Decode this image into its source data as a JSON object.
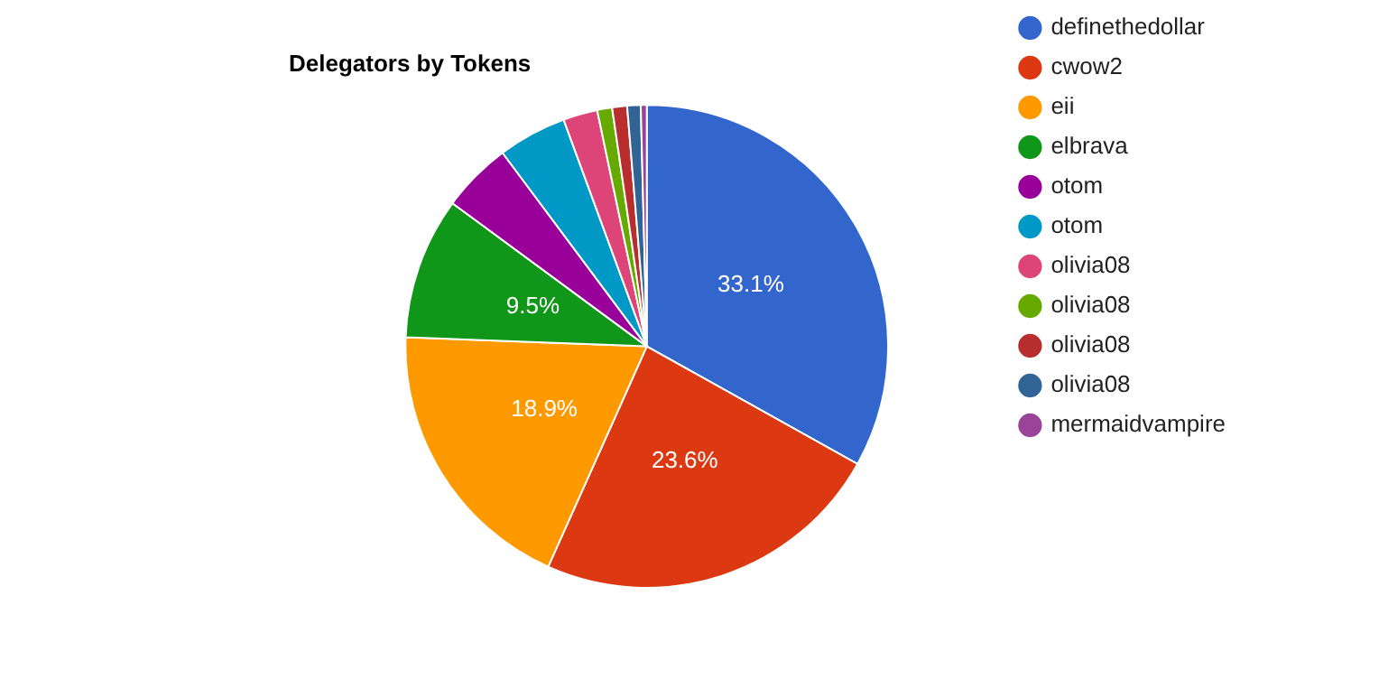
{
  "chart_data": {
    "type": "pie",
    "title": "Delegators by Tokens",
    "categories": [
      "definethedollar",
      "cwow2",
      "eii",
      "elbrava",
      "otom",
      "otom",
      "olivia08",
      "olivia08",
      "olivia08",
      "olivia08",
      "mermaidvampire"
    ],
    "values": [
      33.1,
      23.6,
      18.9,
      9.5,
      4.7,
      4.6,
      2.3,
      1.0,
      1.0,
      0.9,
      0.4
    ],
    "colors": [
      "#3366cc",
      "#dc3912",
      "#ff9900",
      "#109618",
      "#990099",
      "#0099c6",
      "#dd4477",
      "#66aa00",
      "#b82e2e",
      "#316395",
      "#994499"
    ],
    "value_labels": [
      "33.1%",
      "23.6%",
      "18.9%",
      "9.5%",
      null,
      null,
      null,
      null,
      null,
      null,
      null
    ],
    "legend": "right"
  }
}
